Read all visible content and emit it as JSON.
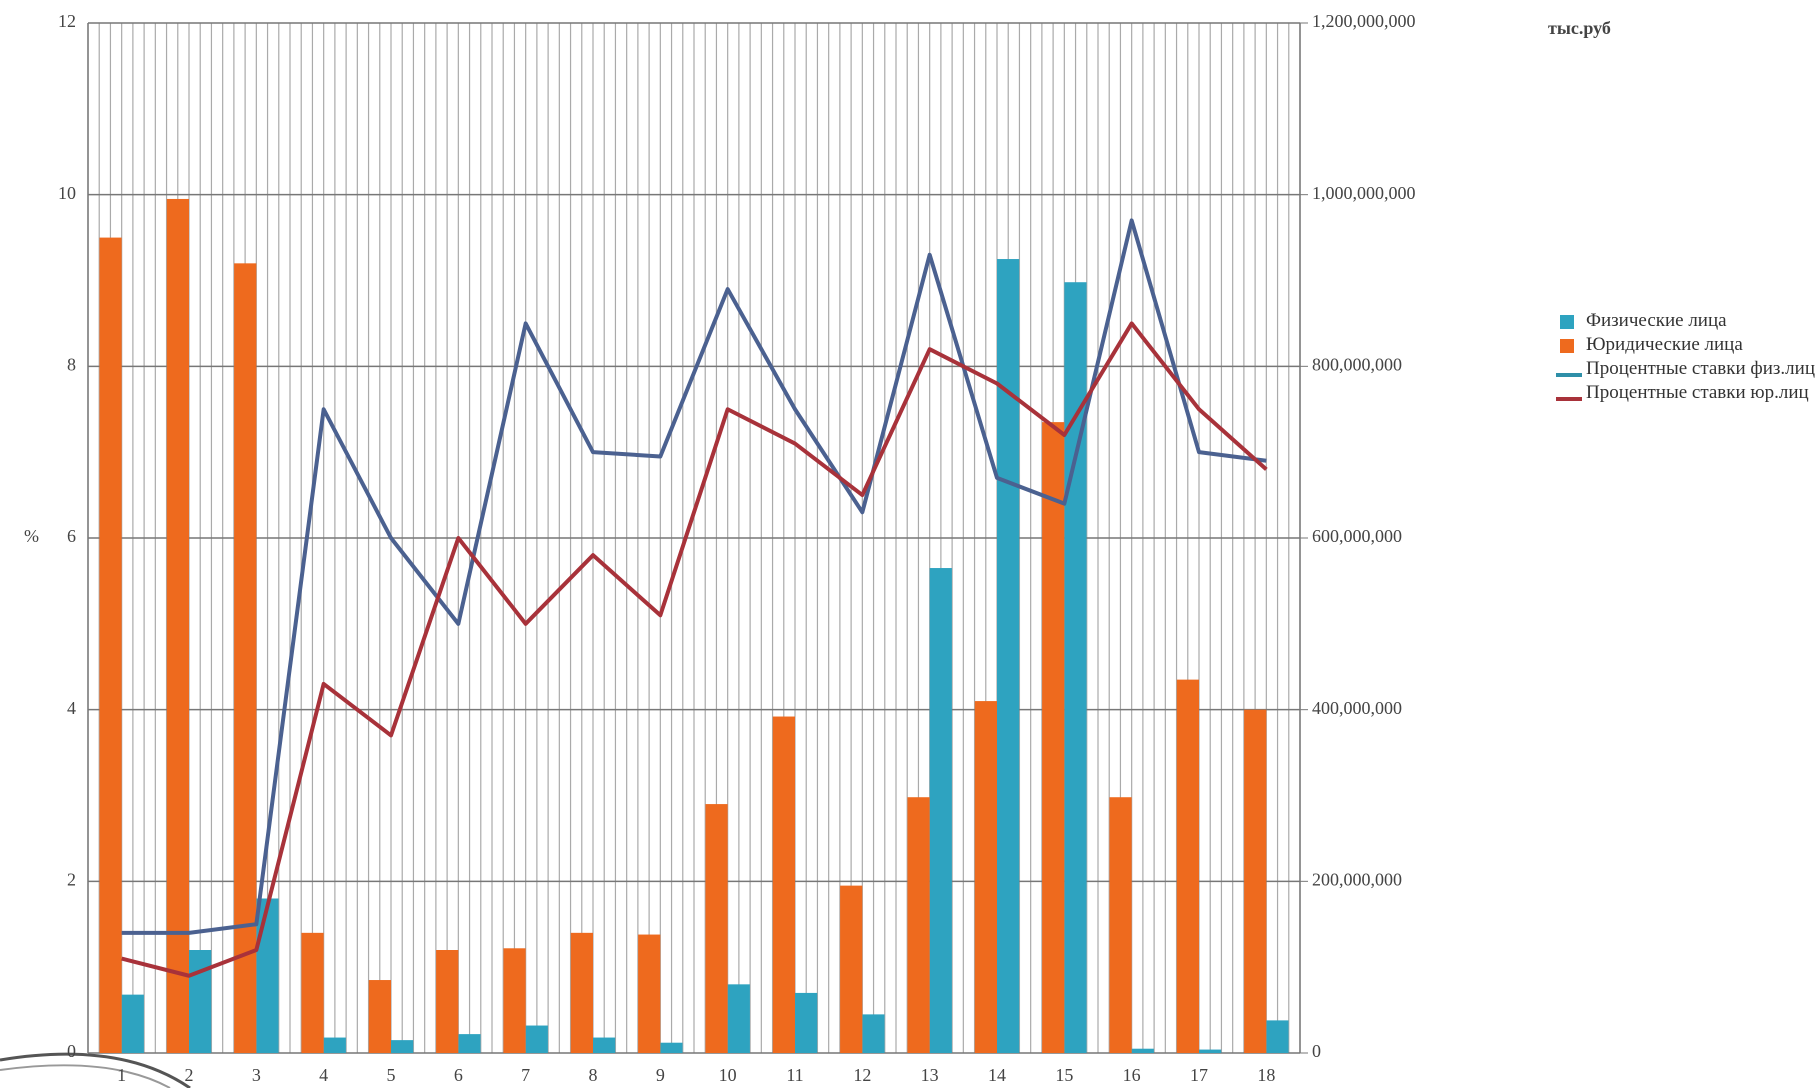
{
  "chart_data": {
    "type": "bar_line",
    "y_label": "%",
    "y2_label": "тыс.руб",
    "categories": [
      "1",
      "2",
      "3",
      "4",
      "5",
      "6",
      "7",
      "8",
      "9",
      "10",
      "11",
      "12",
      "13",
      "14",
      "15",
      "16",
      "17",
      "18"
    ],
    "series": [
      {
        "name": "Физические лица",
        "color": "#2ea3c0",
        "kind": "bar",
        "axis": "y2",
        "values": [
          68000000,
          120000000,
          180000000,
          18000000,
          15000000,
          22000000,
          32000000,
          18000000,
          12000000,
          80000000,
          70000000,
          45000000,
          565000000,
          925000000,
          898000000,
          5000000,
          4000000,
          38000000
        ]
      },
      {
        "name": "Юридические лица",
        "color": "#ee6a1e",
        "kind": "bar",
        "axis": "y2",
        "values": [
          950000000,
          995000000,
          920000000,
          140000000,
          85000000,
          120000000,
          122000000,
          140000000,
          138000000,
          290000000,
          392000000,
          195000000,
          298000000,
          410000000,
          735000000,
          298000000,
          435000000,
          400000000
        ]
      },
      {
        "name": "Процентные ставки физ.лиц",
        "color": "#4b6190",
        "legend_color": "#2e8fa8",
        "kind": "line",
        "values": [
          1.4,
          1.4,
          1.5,
          7.5,
          6.0,
          5.0,
          8.5,
          7.0,
          6.95,
          8.9,
          7.5,
          6.3,
          9.3,
          6.7,
          6.4,
          9.7,
          7.0,
          6.9
        ]
      },
      {
        "name": "Процентные ставки юр.лиц",
        "color": "#a8323a",
        "kind": "line",
        "values": [
          1.1,
          0.9,
          1.2,
          4.3,
          3.7,
          6.0,
          5.0,
          5.8,
          5.1,
          7.5,
          7.1,
          6.5,
          8.2,
          7.8,
          7.2,
          8.5,
          7.5,
          6.8
        ]
      }
    ],
    "ylim": [
      0,
      12
    ],
    "yticks": [
      0,
      2,
      4,
      6,
      8,
      10,
      12
    ],
    "y2lim": [
      0,
      1200000000
    ],
    "y2ticks": [
      {
        "value": 0,
        "label": "0"
      },
      {
        "value": 200000000,
        "label": "200,000,000"
      },
      {
        "value": 400000000,
        "label": "400,000,000"
      },
      {
        "value": 600000000,
        "label": "600,000,000"
      },
      {
        "value": 800000000,
        "label": "800,000,000"
      },
      {
        "value": 1000000000,
        "label": "1,000,000,000"
      },
      {
        "value": 1200000000,
        "label": "1,200,000,000"
      }
    ],
    "grid": true
  }
}
